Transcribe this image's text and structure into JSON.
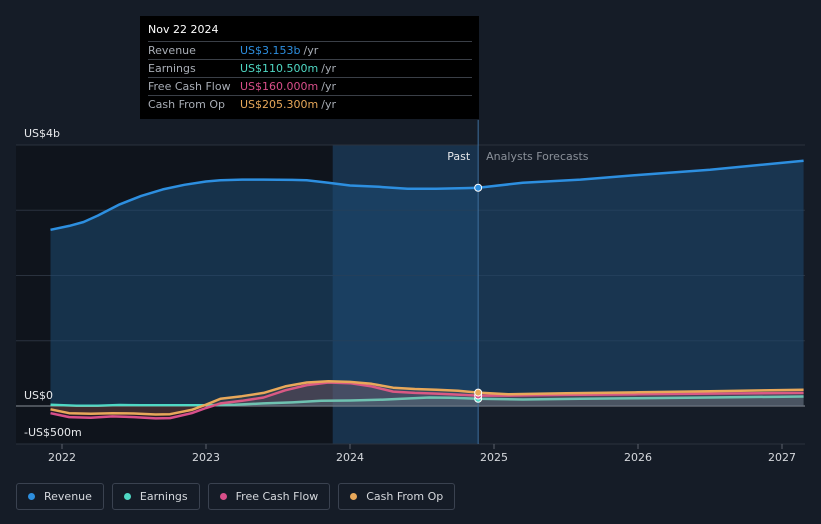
{
  "colors": {
    "background": "#151c27",
    "revenue": "#2d8fe0",
    "earnings": "#4fd8c4",
    "free_cash_flow": "#d84f8a",
    "cash_from_op": "#e8a85a",
    "forecast_band": "#1c3f63"
  },
  "tooltip": {
    "date": "Nov 22 2024",
    "rows": [
      {
        "label": "Revenue",
        "value": "US$3.153b",
        "unit": "/yr"
      },
      {
        "label": "Earnings",
        "value": "US$110.500m",
        "unit": "/yr"
      },
      {
        "label": "Free Cash Flow",
        "value": "US$160.000m",
        "unit": "/yr"
      },
      {
        "label": "Cash From Op",
        "value": "US$205.300m",
        "unit": "/yr"
      }
    ]
  },
  "legend": [
    {
      "label": "Revenue",
      "icon": "circle-dot-icon"
    },
    {
      "label": "Earnings",
      "icon": "circle-dot-icon"
    },
    {
      "label": "Free Cash Flow",
      "icon": "circle-dot-icon"
    },
    {
      "label": "Cash From Op",
      "icon": "circle-dot-icon"
    }
  ],
  "chart_data": {
    "type": "line",
    "title": "",
    "xlabel": "",
    "ylabel": "",
    "x_ticks": [
      "2022",
      "2023",
      "2024",
      "2025",
      "2026",
      "2027"
    ],
    "y_tick_labels": [
      "US$4b",
      "US$0",
      "-US$500m"
    ],
    "ylim": [
      -500,
      4000
    ],
    "xlim": [
      2021.9,
      2027.15
    ],
    "grid": true,
    "legend_position": "bottom-left",
    "past_label": "Past",
    "forecast_label": "Analysts Forecasts",
    "divider_x": 2024.89,
    "highlight_range": [
      2023.88,
      2024.89
    ],
    "series": [
      {
        "name": "Revenue",
        "x": [
          2021.92,
          2022.05,
          2022.15,
          2022.25,
          2022.4,
          2022.55,
          2022.7,
          2022.85,
          2023.0,
          2023.1,
          2023.25,
          2023.4,
          2023.6,
          2023.7,
          2023.85,
          2024.0,
          2024.2,
          2024.4,
          2024.6,
          2024.8,
          2024.89,
          2025.2,
          2025.6,
          2026.0,
          2026.5,
          2027.15
        ],
        "values": [
          2700,
          2760,
          2820,
          2920,
          3090,
          3220,
          3320,
          3390,
          3440,
          3460,
          3470,
          3470,
          3465,
          3460,
          3420,
          3380,
          3360,
          3330,
          3330,
          3340,
          3153,
          3420,
          3470,
          3540,
          3620,
          3760
        ]
      },
      {
        "name": "Earnings",
        "x": [
          2021.92,
          2022.1,
          2022.25,
          2022.4,
          2022.55,
          2022.7,
          2022.85,
          2023.0,
          2023.2,
          2023.4,
          2023.6,
          2023.8,
          2024.0,
          2024.2,
          2024.4,
          2024.55,
          2024.7,
          2024.89,
          2025.2,
          2025.6,
          2026.0,
          2026.5,
          2027.15
        ],
        "values": [
          20,
          5,
          5,
          15,
          10,
          10,
          10,
          10,
          20,
          40,
          55,
          80,
          85,
          95,
          115,
          130,
          125,
          110.5,
          100,
          110,
          120,
          130,
          145
        ]
      },
      {
        "name": "Free Cash Flow",
        "x": [
          2021.92,
          2022.05,
          2022.2,
          2022.35,
          2022.5,
          2022.65,
          2022.75,
          2022.9,
          2023.0,
          2023.1,
          2023.25,
          2023.4,
          2023.55,
          2023.7,
          2023.85,
          2024.0,
          2024.15,
          2024.3,
          2024.45,
          2024.6,
          2024.75,
          2024.89,
          2025.1,
          2025.5,
          2026.0,
          2026.5,
          2027.15
        ],
        "values": [
          -110,
          -170,
          -180,
          -160,
          -170,
          -190,
          -185,
          -110,
          -30,
          40,
          80,
          130,
          240,
          320,
          360,
          350,
          300,
          220,
          200,
          190,
          175,
          160,
          160,
          170,
          180,
          190,
          200
        ]
      },
      {
        "name": "Cash From Op",
        "x": [
          2021.92,
          2022.05,
          2022.2,
          2022.35,
          2022.5,
          2022.65,
          2022.75,
          2022.9,
          2023.0,
          2023.1,
          2023.25,
          2023.4,
          2023.55,
          2023.7,
          2023.85,
          2024.0,
          2024.15,
          2024.3,
          2024.45,
          2024.6,
          2024.75,
          2024.89,
          2025.1,
          2025.5,
          2026.0,
          2026.5,
          2027.15
        ],
        "values": [
          -50,
          -110,
          -120,
          -110,
          -115,
          -130,
          -125,
          -60,
          20,
          110,
          150,
          200,
          300,
          360,
          380,
          370,
          340,
          280,
          260,
          250,
          235,
          205.3,
          180,
          195,
          210,
          225,
          250
        ]
      }
    ]
  }
}
